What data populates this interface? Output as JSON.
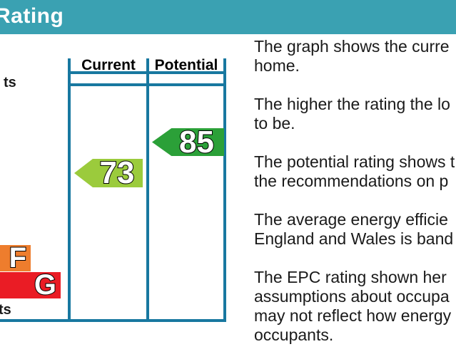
{
  "header": {
    "title": "Rating",
    "bg_color": "#3AA1B2"
  },
  "chart": {
    "border_color": "#1878A0",
    "column_headers": {
      "current": "Current",
      "potential": "Potential"
    },
    "caption_top_fragment": "ts",
    "caption_bottom_fragment": "ts",
    "bands": [
      {
        "letter": "F",
        "color": "#EE7D2D"
      },
      {
        "letter": "G",
        "color": "#EA1C25"
      }
    ],
    "markers": {
      "current": {
        "value": "73",
        "color": "#9BCB3C"
      },
      "potential": {
        "value": "85",
        "color": "#2BA038"
      }
    }
  },
  "chart_data": {
    "type": "bar",
    "title": "Rating",
    "categories": [
      "Current",
      "Potential"
    ],
    "values": [
      73,
      85
    ],
    "visible_band_letters": [
      "F",
      "G"
    ],
    "band_colors": {
      "F": "#EE7D2D",
      "G": "#EA1C25"
    },
    "marker_colors": {
      "current": "#9BCB3C",
      "potential": "#2BA038"
    }
  },
  "paragraphs": [
    {
      "lines": [
        "The graph shows the curre",
        "home."
      ]
    },
    {
      "lines": [
        "The higher the rating the lo",
        "to be."
      ]
    },
    {
      "lines": [
        "The potential rating shows t",
        "the recommendations on p"
      ]
    },
    {
      "lines": [
        "The average energy efficie",
        "England and Wales is band"
      ]
    },
    {
      "lines": [
        "The EPC rating shown her",
        "assumptions about occupa",
        "may not reflect how energy",
        "occupants."
      ]
    }
  ]
}
